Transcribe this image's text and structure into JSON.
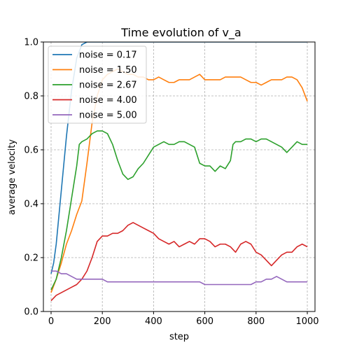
{
  "chart_data": {
    "type": "line",
    "title": "Time evolution of v_a",
    "xlabel": "step",
    "ylabel": "average velocity",
    "xlim": [
      -30,
      1030
    ],
    "ylim": [
      0,
      1.0
    ],
    "xticks": [
      0,
      200,
      400,
      600,
      800,
      1000
    ],
    "xtick_labels": [
      "0",
      "200",
      "400",
      "600",
      "800",
      "1000"
    ],
    "yticks": [
      0.0,
      0.2,
      0.4,
      0.6,
      0.8,
      1.0
    ],
    "ytick_labels": [
      "0.0",
      "0.2",
      "0.4",
      "0.6",
      "0.8",
      "1.0"
    ],
    "grid": true,
    "legend_position": "top-left",
    "series": [
      {
        "name": "noise = 0.17",
        "color": "#1f77b4",
        "points": [
          [
            0,
            0.14
          ],
          [
            10,
            0.18
          ],
          [
            20,
            0.25
          ],
          [
            40,
            0.45
          ],
          [
            60,
            0.65
          ],
          [
            80,
            0.82
          ],
          [
            100,
            0.94
          ],
          [
            120,
            0.99
          ],
          [
            140,
            1.0
          ],
          [
            200,
            1.0
          ],
          [
            400,
            1.0
          ],
          [
            600,
            1.0
          ],
          [
            800,
            1.0
          ],
          [
            1000,
            1.0
          ]
        ]
      },
      {
        "name": "noise = 1.50",
        "color": "#ff7f0e",
        "points": [
          [
            0,
            0.07
          ],
          [
            20,
            0.12
          ],
          [
            40,
            0.18
          ],
          [
            60,
            0.25
          ],
          [
            80,
            0.3
          ],
          [
            100,
            0.36
          ],
          [
            120,
            0.41
          ],
          [
            140,
            0.55
          ],
          [
            160,
            0.7
          ],
          [
            180,
            0.8
          ],
          [
            200,
            0.86
          ],
          [
            220,
            0.88
          ],
          [
            240,
            0.89
          ],
          [
            260,
            0.9
          ],
          [
            280,
            0.89
          ],
          [
            300,
            0.88
          ],
          [
            320,
            0.88
          ],
          [
            340,
            0.87
          ],
          [
            360,
            0.87
          ],
          [
            380,
            0.86
          ],
          [
            400,
            0.86
          ],
          [
            420,
            0.87
          ],
          [
            440,
            0.86
          ],
          [
            460,
            0.85
          ],
          [
            480,
            0.85
          ],
          [
            500,
            0.86
          ],
          [
            520,
            0.86
          ],
          [
            540,
            0.86
          ],
          [
            560,
            0.87
          ],
          [
            580,
            0.88
          ],
          [
            600,
            0.86
          ],
          [
            620,
            0.86
          ],
          [
            640,
            0.86
          ],
          [
            660,
            0.86
          ],
          [
            680,
            0.87
          ],
          [
            700,
            0.87
          ],
          [
            720,
            0.87
          ],
          [
            740,
            0.87
          ],
          [
            760,
            0.86
          ],
          [
            780,
            0.85
          ],
          [
            800,
            0.85
          ],
          [
            820,
            0.84
          ],
          [
            840,
            0.85
          ],
          [
            860,
            0.86
          ],
          [
            880,
            0.86
          ],
          [
            900,
            0.86
          ],
          [
            920,
            0.87
          ],
          [
            940,
            0.87
          ],
          [
            960,
            0.86
          ],
          [
            980,
            0.83
          ],
          [
            1000,
            0.78
          ]
        ]
      },
      {
        "name": "noise = 2.67",
        "color": "#2ca02c",
        "points": [
          [
            0,
            0.08
          ],
          [
            20,
            0.12
          ],
          [
            40,
            0.2
          ],
          [
            60,
            0.3
          ],
          [
            80,
            0.42
          ],
          [
            100,
            0.54
          ],
          [
            110,
            0.62
          ],
          [
            120,
            0.63
          ],
          [
            140,
            0.64
          ],
          [
            160,
            0.66
          ],
          [
            180,
            0.67
          ],
          [
            200,
            0.67
          ],
          [
            220,
            0.66
          ],
          [
            240,
            0.62
          ],
          [
            260,
            0.56
          ],
          [
            280,
            0.51
          ],
          [
            300,
            0.49
          ],
          [
            320,
            0.5
          ],
          [
            340,
            0.53
          ],
          [
            360,
            0.55
          ],
          [
            380,
            0.58
          ],
          [
            400,
            0.61
          ],
          [
            420,
            0.62
          ],
          [
            440,
            0.63
          ],
          [
            460,
            0.62
          ],
          [
            480,
            0.62
          ],
          [
            500,
            0.63
          ],
          [
            520,
            0.63
          ],
          [
            540,
            0.62
          ],
          [
            560,
            0.61
          ],
          [
            580,
            0.55
          ],
          [
            600,
            0.54
          ],
          [
            620,
            0.54
          ],
          [
            640,
            0.52
          ],
          [
            660,
            0.54
          ],
          [
            680,
            0.53
          ],
          [
            700,
            0.56
          ],
          [
            710,
            0.62
          ],
          [
            720,
            0.63
          ],
          [
            740,
            0.63
          ],
          [
            760,
            0.64
          ],
          [
            780,
            0.64
          ],
          [
            800,
            0.63
          ],
          [
            820,
            0.64
          ],
          [
            840,
            0.64
          ],
          [
            860,
            0.63
          ],
          [
            880,
            0.62
          ],
          [
            900,
            0.61
          ],
          [
            920,
            0.59
          ],
          [
            940,
            0.61
          ],
          [
            960,
            0.63
          ],
          [
            980,
            0.62
          ],
          [
            1000,
            0.62
          ]
        ]
      },
      {
        "name": "noise = 4.00",
        "color": "#d62728",
        "points": [
          [
            0,
            0.04
          ],
          [
            20,
            0.06
          ],
          [
            40,
            0.07
          ],
          [
            60,
            0.08
          ],
          [
            80,
            0.09
          ],
          [
            100,
            0.1
          ],
          [
            120,
            0.12
          ],
          [
            140,
            0.15
          ],
          [
            160,
            0.2
          ],
          [
            180,
            0.26
          ],
          [
            200,
            0.28
          ],
          [
            220,
            0.28
          ],
          [
            240,
            0.29
          ],
          [
            260,
            0.29
          ],
          [
            280,
            0.3
          ],
          [
            300,
            0.32
          ],
          [
            320,
            0.33
          ],
          [
            340,
            0.32
          ],
          [
            360,
            0.31
          ],
          [
            380,
            0.3
          ],
          [
            400,
            0.29
          ],
          [
            420,
            0.27
          ],
          [
            440,
            0.26
          ],
          [
            460,
            0.25
          ],
          [
            480,
            0.26
          ],
          [
            500,
            0.24
          ],
          [
            520,
            0.25
          ],
          [
            540,
            0.26
          ],
          [
            560,
            0.25
          ],
          [
            580,
            0.27
          ],
          [
            600,
            0.27
          ],
          [
            620,
            0.26
          ],
          [
            640,
            0.24
          ],
          [
            660,
            0.25
          ],
          [
            680,
            0.25
          ],
          [
            700,
            0.24
          ],
          [
            720,
            0.22
          ],
          [
            740,
            0.25
          ],
          [
            760,
            0.26
          ],
          [
            780,
            0.25
          ],
          [
            800,
            0.22
          ],
          [
            820,
            0.21
          ],
          [
            840,
            0.19
          ],
          [
            860,
            0.17
          ],
          [
            880,
            0.19
          ],
          [
            900,
            0.21
          ],
          [
            920,
            0.22
          ],
          [
            940,
            0.22
          ],
          [
            960,
            0.24
          ],
          [
            980,
            0.25
          ],
          [
            1000,
            0.24
          ]
        ]
      },
      {
        "name": "noise = 5.00",
        "color": "#9467bd",
        "points": [
          [
            0,
            0.15
          ],
          [
            20,
            0.15
          ],
          [
            40,
            0.14
          ],
          [
            60,
            0.14
          ],
          [
            80,
            0.13
          ],
          [
            100,
            0.12
          ],
          [
            120,
            0.12
          ],
          [
            140,
            0.12
          ],
          [
            160,
            0.12
          ],
          [
            180,
            0.12
          ],
          [
            200,
            0.12
          ],
          [
            220,
            0.11
          ],
          [
            240,
            0.11
          ],
          [
            260,
            0.11
          ],
          [
            280,
            0.11
          ],
          [
            300,
            0.11
          ],
          [
            320,
            0.11
          ],
          [
            340,
            0.11
          ],
          [
            360,
            0.11
          ],
          [
            380,
            0.11
          ],
          [
            400,
            0.11
          ],
          [
            420,
            0.11
          ],
          [
            440,
            0.11
          ],
          [
            460,
            0.11
          ],
          [
            480,
            0.11
          ],
          [
            500,
            0.11
          ],
          [
            520,
            0.11
          ],
          [
            540,
            0.11
          ],
          [
            560,
            0.11
          ],
          [
            580,
            0.11
          ],
          [
            600,
            0.1
          ],
          [
            620,
            0.1
          ],
          [
            640,
            0.1
          ],
          [
            660,
            0.1
          ],
          [
            680,
            0.1
          ],
          [
            700,
            0.1
          ],
          [
            720,
            0.1
          ],
          [
            740,
            0.1
          ],
          [
            760,
            0.1
          ],
          [
            780,
            0.1
          ],
          [
            800,
            0.11
          ],
          [
            820,
            0.11
          ],
          [
            840,
            0.12
          ],
          [
            860,
            0.12
          ],
          [
            880,
            0.13
          ],
          [
            900,
            0.12
          ],
          [
            920,
            0.11
          ],
          [
            940,
            0.11
          ],
          [
            960,
            0.11
          ],
          [
            980,
            0.11
          ],
          [
            1000,
            0.11
          ]
        ]
      }
    ]
  }
}
